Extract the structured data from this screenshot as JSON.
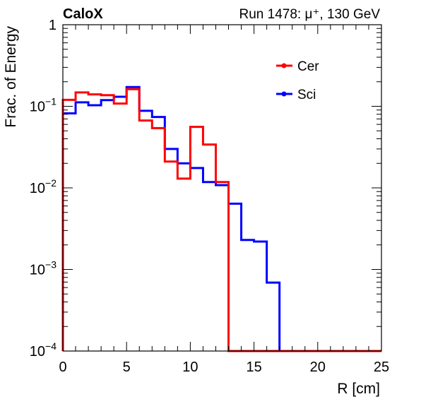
{
  "chart_data": {
    "type": "line",
    "style": "step-histogram",
    "title_left": "CaloX",
    "title_right": "Run 1478:   μ⁺, 130 GeV",
    "xlabel": "R [cm]",
    "ylabel": "Frac. of Energy",
    "xlim": [
      0,
      25
    ],
    "ylim": [
      0.0001,
      1
    ],
    "yscale": "log",
    "x_ticks": [
      "0",
      "5",
      "10",
      "15",
      "20",
      "25"
    ],
    "y_ticks": [
      {
        "base": "10",
        "exp": "−4",
        "value": 0.0001
      },
      {
        "base": "10",
        "exp": "−3",
        "value": 0.001
      },
      {
        "base": "10",
        "exp": "−2",
        "value": 0.01
      },
      {
        "base": "10",
        "exp": "−1",
        "value": 0.1
      },
      {
        "base": "1",
        "exp": "",
        "value": 1
      }
    ],
    "bin_edges": [
      0,
      1,
      2,
      3,
      4,
      5,
      6,
      7,
      8,
      9,
      10,
      11,
      12,
      13,
      14,
      15,
      16,
      17,
      18,
      19,
      20,
      21,
      22,
      23,
      24,
      25
    ],
    "legend_position": "top-right",
    "series": [
      {
        "name": "Cer",
        "color": "#ff0000",
        "values": [
          0.12,
          0.148,
          0.14,
          0.137,
          0.108,
          0.162,
          0.067,
          0.054,
          0.021,
          0.013,
          0.056,
          0.034,
          0.0118,
          0,
          0,
          0,
          0,
          0,
          0,
          0,
          0,
          0,
          0,
          0,
          0
        ]
      },
      {
        "name": "Sci",
        "color": "#0000ff",
        "values": [
          0.082,
          0.112,
          0.103,
          0.119,
          0.131,
          0.172,
          0.088,
          0.074,
          0.03,
          0.02,
          0.0175,
          0.0118,
          0.0108,
          0.0064,
          0.0023,
          0.0022,
          0.00069,
          0,
          0,
          0,
          0,
          0,
          0,
          0,
          0
        ]
      }
    ]
  }
}
